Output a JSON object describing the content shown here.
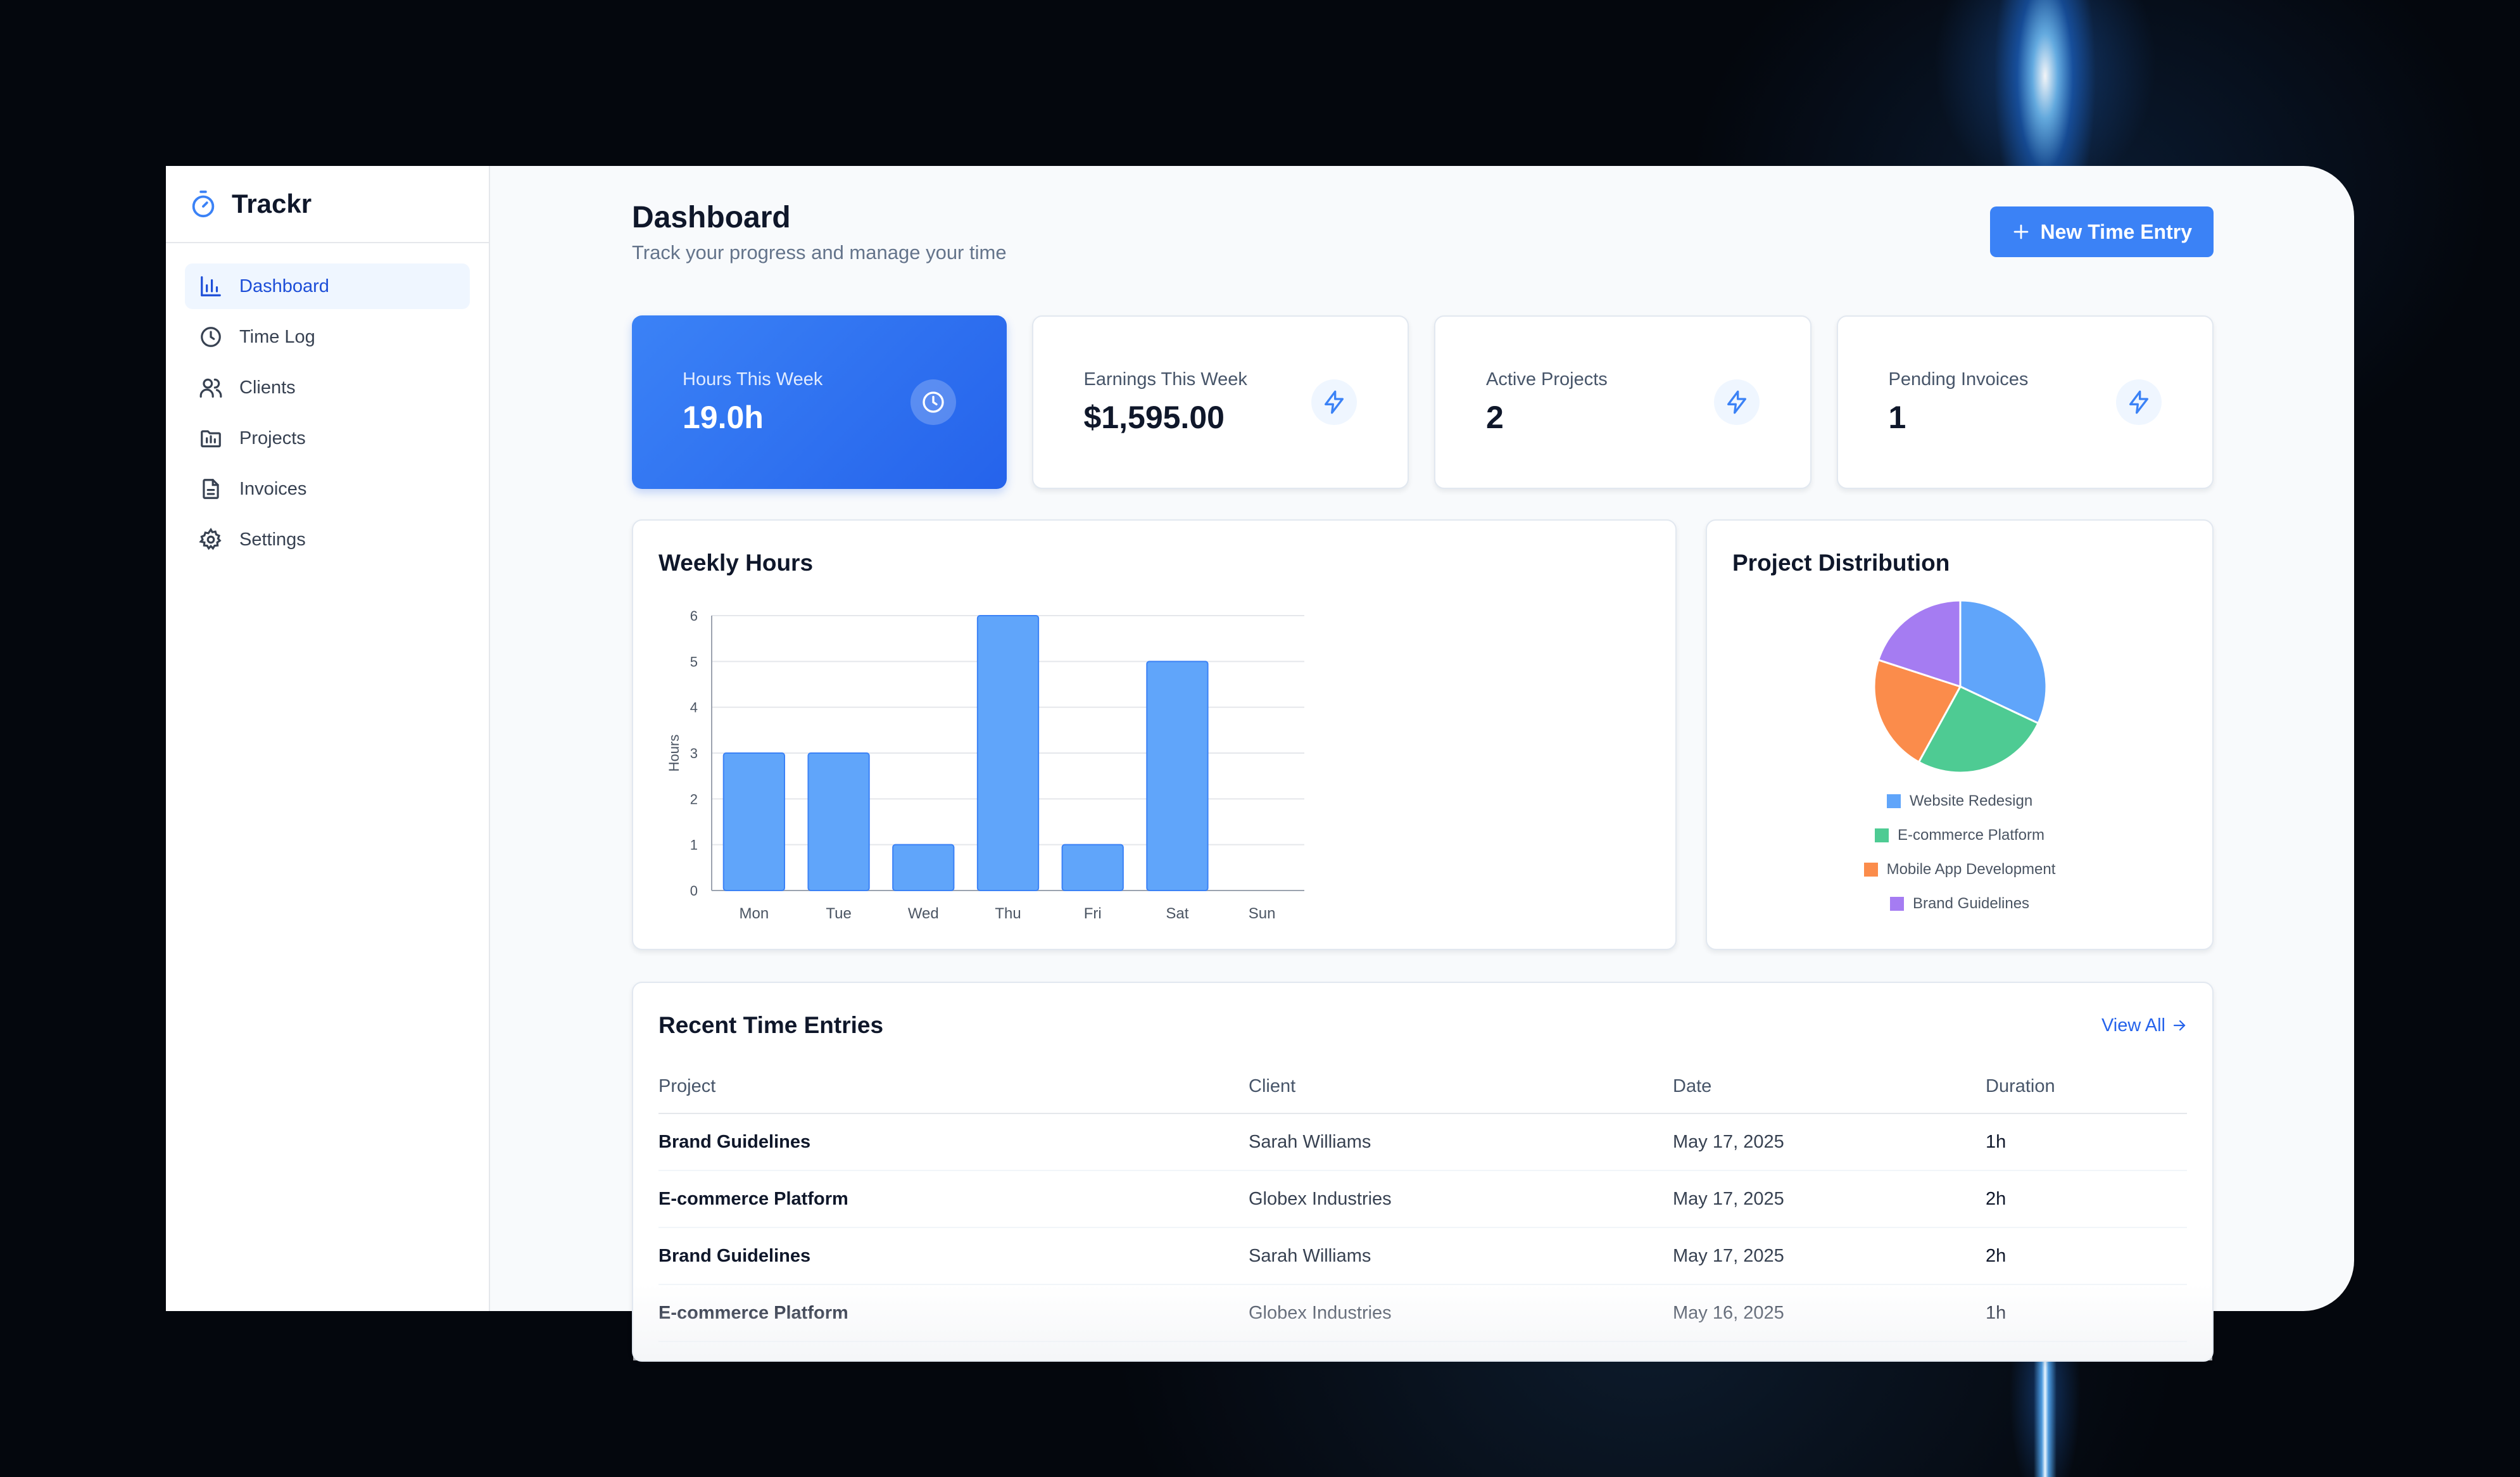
{
  "app": {
    "name": "Trackr"
  },
  "sidebar": {
    "items": [
      {
        "label": "Dashboard",
        "icon": "bar-chart-icon",
        "active": true
      },
      {
        "label": "Time Log",
        "icon": "clock-icon",
        "active": false
      },
      {
        "label": "Clients",
        "icon": "users-icon",
        "active": false
      },
      {
        "label": "Projects",
        "icon": "folder-icon",
        "active": false
      },
      {
        "label": "Invoices",
        "icon": "file-text-icon",
        "active": false
      },
      {
        "label": "Settings",
        "icon": "gear-icon",
        "active": false
      }
    ]
  },
  "header": {
    "title": "Dashboard",
    "subtitle": "Track your progress and manage your time",
    "new_entry_label": "New Time Entry"
  },
  "stats": [
    {
      "label": "Hours This Week",
      "value": "19.0h",
      "icon": "clock-icon"
    },
    {
      "label": "Earnings This Week",
      "value": "$1,595.00",
      "icon": "lightning-icon"
    },
    {
      "label": "Active Projects",
      "value": "2",
      "icon": "lightning-icon"
    },
    {
      "label": "Pending Invoices",
      "value": "1",
      "icon": "lightning-icon"
    }
  ],
  "colors": {
    "accent": "#3b82f6",
    "bar": "#60a5fa",
    "pie": [
      "#60a5fa",
      "#4ecb93",
      "#fb8c4b",
      "#a57cf2"
    ]
  },
  "chart_data": [
    {
      "type": "bar",
      "title": "Weekly Hours",
      "categories": [
        "Mon",
        "Tue",
        "Wed",
        "Thu",
        "Fri",
        "Sat",
        "Sun"
      ],
      "values": [
        3,
        3,
        1,
        6,
        1,
        5,
        0
      ],
      "ylabel": "Hours",
      "xlabel": "",
      "ylim": [
        0,
        6
      ],
      "yticks": [
        0,
        1,
        2,
        3,
        4,
        5,
        6
      ],
      "grid": true
    },
    {
      "type": "pie",
      "title": "Project Distribution",
      "labels": [
        "Website Redesign",
        "E-commerce Platform",
        "Mobile App Development",
        "Brand Guidelines"
      ],
      "values": [
        32,
        26,
        22,
        20
      ],
      "legend": "bottom"
    }
  ],
  "recent": {
    "title": "Recent Time Entries",
    "view_all_label": "View All",
    "columns": [
      "Project",
      "Client",
      "Date",
      "Duration"
    ],
    "rows": [
      {
        "project": "Brand Guidelines",
        "client": "Sarah Williams",
        "date": "May 17, 2025",
        "duration": "1h"
      },
      {
        "project": "E-commerce Platform",
        "client": "Globex Industries",
        "date": "May 17, 2025",
        "duration": "2h"
      },
      {
        "project": "Brand Guidelines",
        "client": "Sarah Williams",
        "date": "May 17, 2025",
        "duration": "2h"
      },
      {
        "project": "E-commerce Platform",
        "client": "Globex Industries",
        "date": "May 16, 2025",
        "duration": "1h"
      }
    ]
  }
}
